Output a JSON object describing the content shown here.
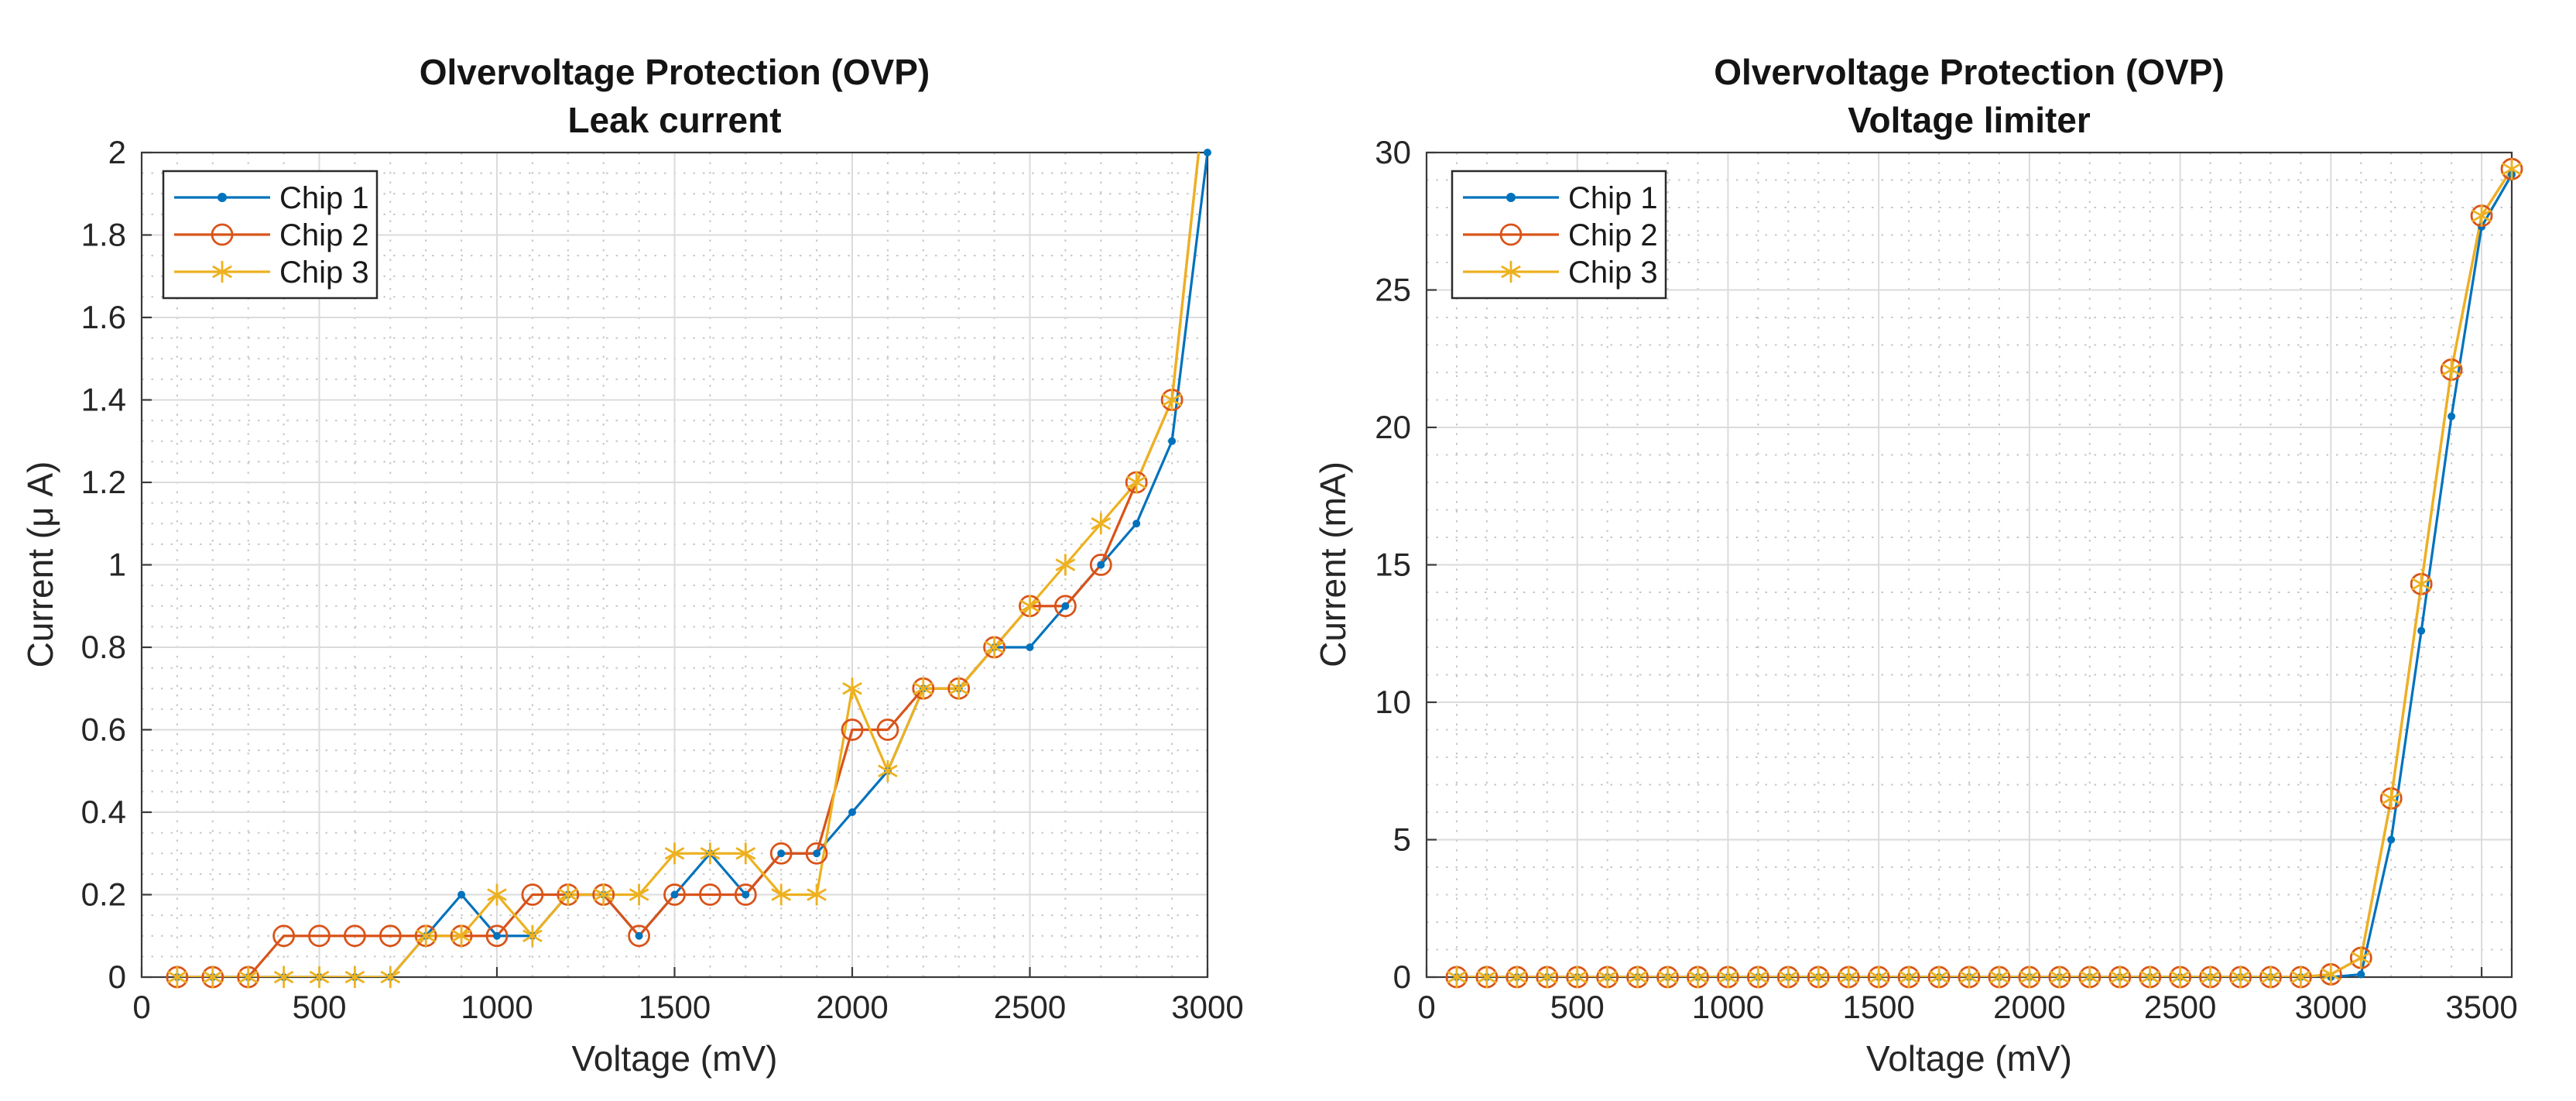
{
  "page": {
    "background": "#ffffff"
  },
  "colors": {
    "chip1": "#0072BD",
    "chip2": "#D95319",
    "chip3": "#EDB120",
    "grid_major": "#dbdbdb",
    "grid_minor": "#c6c6c6",
    "axis": "#3a3a3a",
    "tick_text": "#262626",
    "title_text": "#141414",
    "legend_border": "#2b2b2b"
  },
  "chart_data": [
    {
      "type": "line",
      "title": "Olvervoltage Protection (OVP)",
      "subtitle": "Leak current",
      "xlabel": "Voltage (mV)",
      "ylabel": "Current (μ A)",
      "xlim": [
        0,
        3000
      ],
      "ylim": [
        0,
        2
      ],
      "xticks": [
        0,
        500,
        1000,
        1500,
        2000,
        2500,
        3000
      ],
      "yticks": [
        0,
        0.2,
        0.4,
        0.6,
        0.8,
        1,
        1.2,
        1.4,
        1.6,
        1.8,
        2
      ],
      "x_minor_step": 100,
      "y_minor_step": 0.05,
      "grid": true,
      "minor_grid": true,
      "legend_position": "top-left",
      "legend": [
        "Chip 1",
        "Chip 2",
        "Chip 3"
      ],
      "x": [
        100,
        200,
        300,
        400,
        500,
        600,
        700,
        800,
        900,
        1000,
        1100,
        1200,
        1300,
        1400,
        1500,
        1600,
        1700,
        1800,
        1900,
        2000,
        2100,
        2200,
        2300,
        2400,
        2500,
        2600,
        2700,
        2800,
        2900,
        3000
      ],
      "series": [
        {
          "name": "Chip 1",
          "color_key": "chip1",
          "marker": "dot",
          "values": [
            0,
            0,
            0,
            0,
            0,
            0,
            0,
            0.1,
            0.2,
            0.1,
            0.1,
            0.2,
            0.2,
            0.1,
            0.2,
            0.3,
            0.2,
            0.3,
            0.3,
            0.4,
            0.5,
            0.7,
            0.7,
            0.8,
            0.8,
            0.9,
            1,
            1.1,
            1.3,
            2
          ]
        },
        {
          "name": "Chip 2",
          "color_key": "chip2",
          "marker": "circle",
          "values": [
            0,
            0,
            0,
            0.1,
            0.1,
            0.1,
            0.1,
            0.1,
            0.1,
            0.1,
            0.2,
            0.2,
            0.2,
            0.1,
            0.2,
            0.2,
            0.2,
            0.3,
            0.3,
            0.6,
            0.6,
            0.7,
            0.7,
            0.8,
            0.9,
            0.9,
            1,
            1.2,
            1.4,
            2.2
          ]
        },
        {
          "name": "Chip 3",
          "color_key": "chip3",
          "marker": "asterisk",
          "values": [
            0,
            0,
            0,
            0,
            0,
            0,
            0,
            0.1,
            0.1,
            0.2,
            0.1,
            0.2,
            0.2,
            0.2,
            0.3,
            0.3,
            0.3,
            0.2,
            0.2,
            0.7,
            0.5,
            0.7,
            0.7,
            0.8,
            0.9,
            1,
            1.1,
            1.2,
            1.4,
            2.2
          ]
        }
      ]
    },
    {
      "type": "line",
      "title": "Olvervoltage Protection (OVP)",
      "subtitle": "Voltage limiter",
      "xlabel": "Voltage (mV)",
      "ylabel": "Current (mA)",
      "xlim": [
        0,
        3600
      ],
      "ylim": [
        0,
        30
      ],
      "xticks": [
        0,
        500,
        1000,
        1500,
        2000,
        2500,
        3000,
        3500
      ],
      "yticks": [
        0,
        5,
        10,
        15,
        20,
        25,
        30
      ],
      "x_minor_step": 100,
      "y_minor_step": 1,
      "grid": true,
      "minor_grid": true,
      "legend_position": "top-left",
      "legend": [
        "Chip 1",
        "Chip 2",
        "Chip 3"
      ],
      "x": [
        100,
        200,
        300,
        400,
        500,
        600,
        700,
        800,
        900,
        1000,
        1100,
        1200,
        1300,
        1400,
        1500,
        1600,
        1700,
        1800,
        1900,
        2000,
        2100,
        2200,
        2300,
        2400,
        2500,
        2600,
        2700,
        2800,
        2900,
        3000,
        3100,
        3200,
        3300,
        3400,
        3500,
        3600
      ],
      "series": [
        {
          "name": "Chip 1",
          "color_key": "chip1",
          "marker": "dot",
          "values": [
            0,
            0,
            0,
            0,
            0,
            0,
            0,
            0,
            0,
            0,
            0,
            0,
            0,
            0,
            0,
            0,
            0,
            0,
            0,
            0,
            0,
            0,
            0,
            0,
            0,
            0,
            0,
            0,
            0,
            0,
            0.1,
            5,
            12.6,
            20.4,
            27.3,
            29.2
          ]
        },
        {
          "name": "Chip 2",
          "color_key": "chip2",
          "marker": "circle",
          "values": [
            0,
            0,
            0,
            0,
            0,
            0,
            0,
            0,
            0,
            0,
            0,
            0,
            0,
            0,
            0,
            0,
            0,
            0,
            0,
            0,
            0,
            0,
            0,
            0,
            0,
            0,
            0,
            0,
            0,
            0.1,
            0.7,
            6.5,
            14.3,
            22.1,
            27.7,
            29.4
          ]
        },
        {
          "name": "Chip 3",
          "color_key": "chip3",
          "marker": "asterisk",
          "values": [
            0,
            0,
            0,
            0,
            0,
            0,
            0,
            0,
            0,
            0,
            0,
            0,
            0,
            0,
            0,
            0,
            0,
            0,
            0,
            0,
            0,
            0,
            0,
            0,
            0,
            0,
            0,
            0,
            0,
            0.1,
            0.7,
            6.5,
            14.3,
            22.1,
            27.7,
            29.4
          ]
        }
      ]
    }
  ]
}
